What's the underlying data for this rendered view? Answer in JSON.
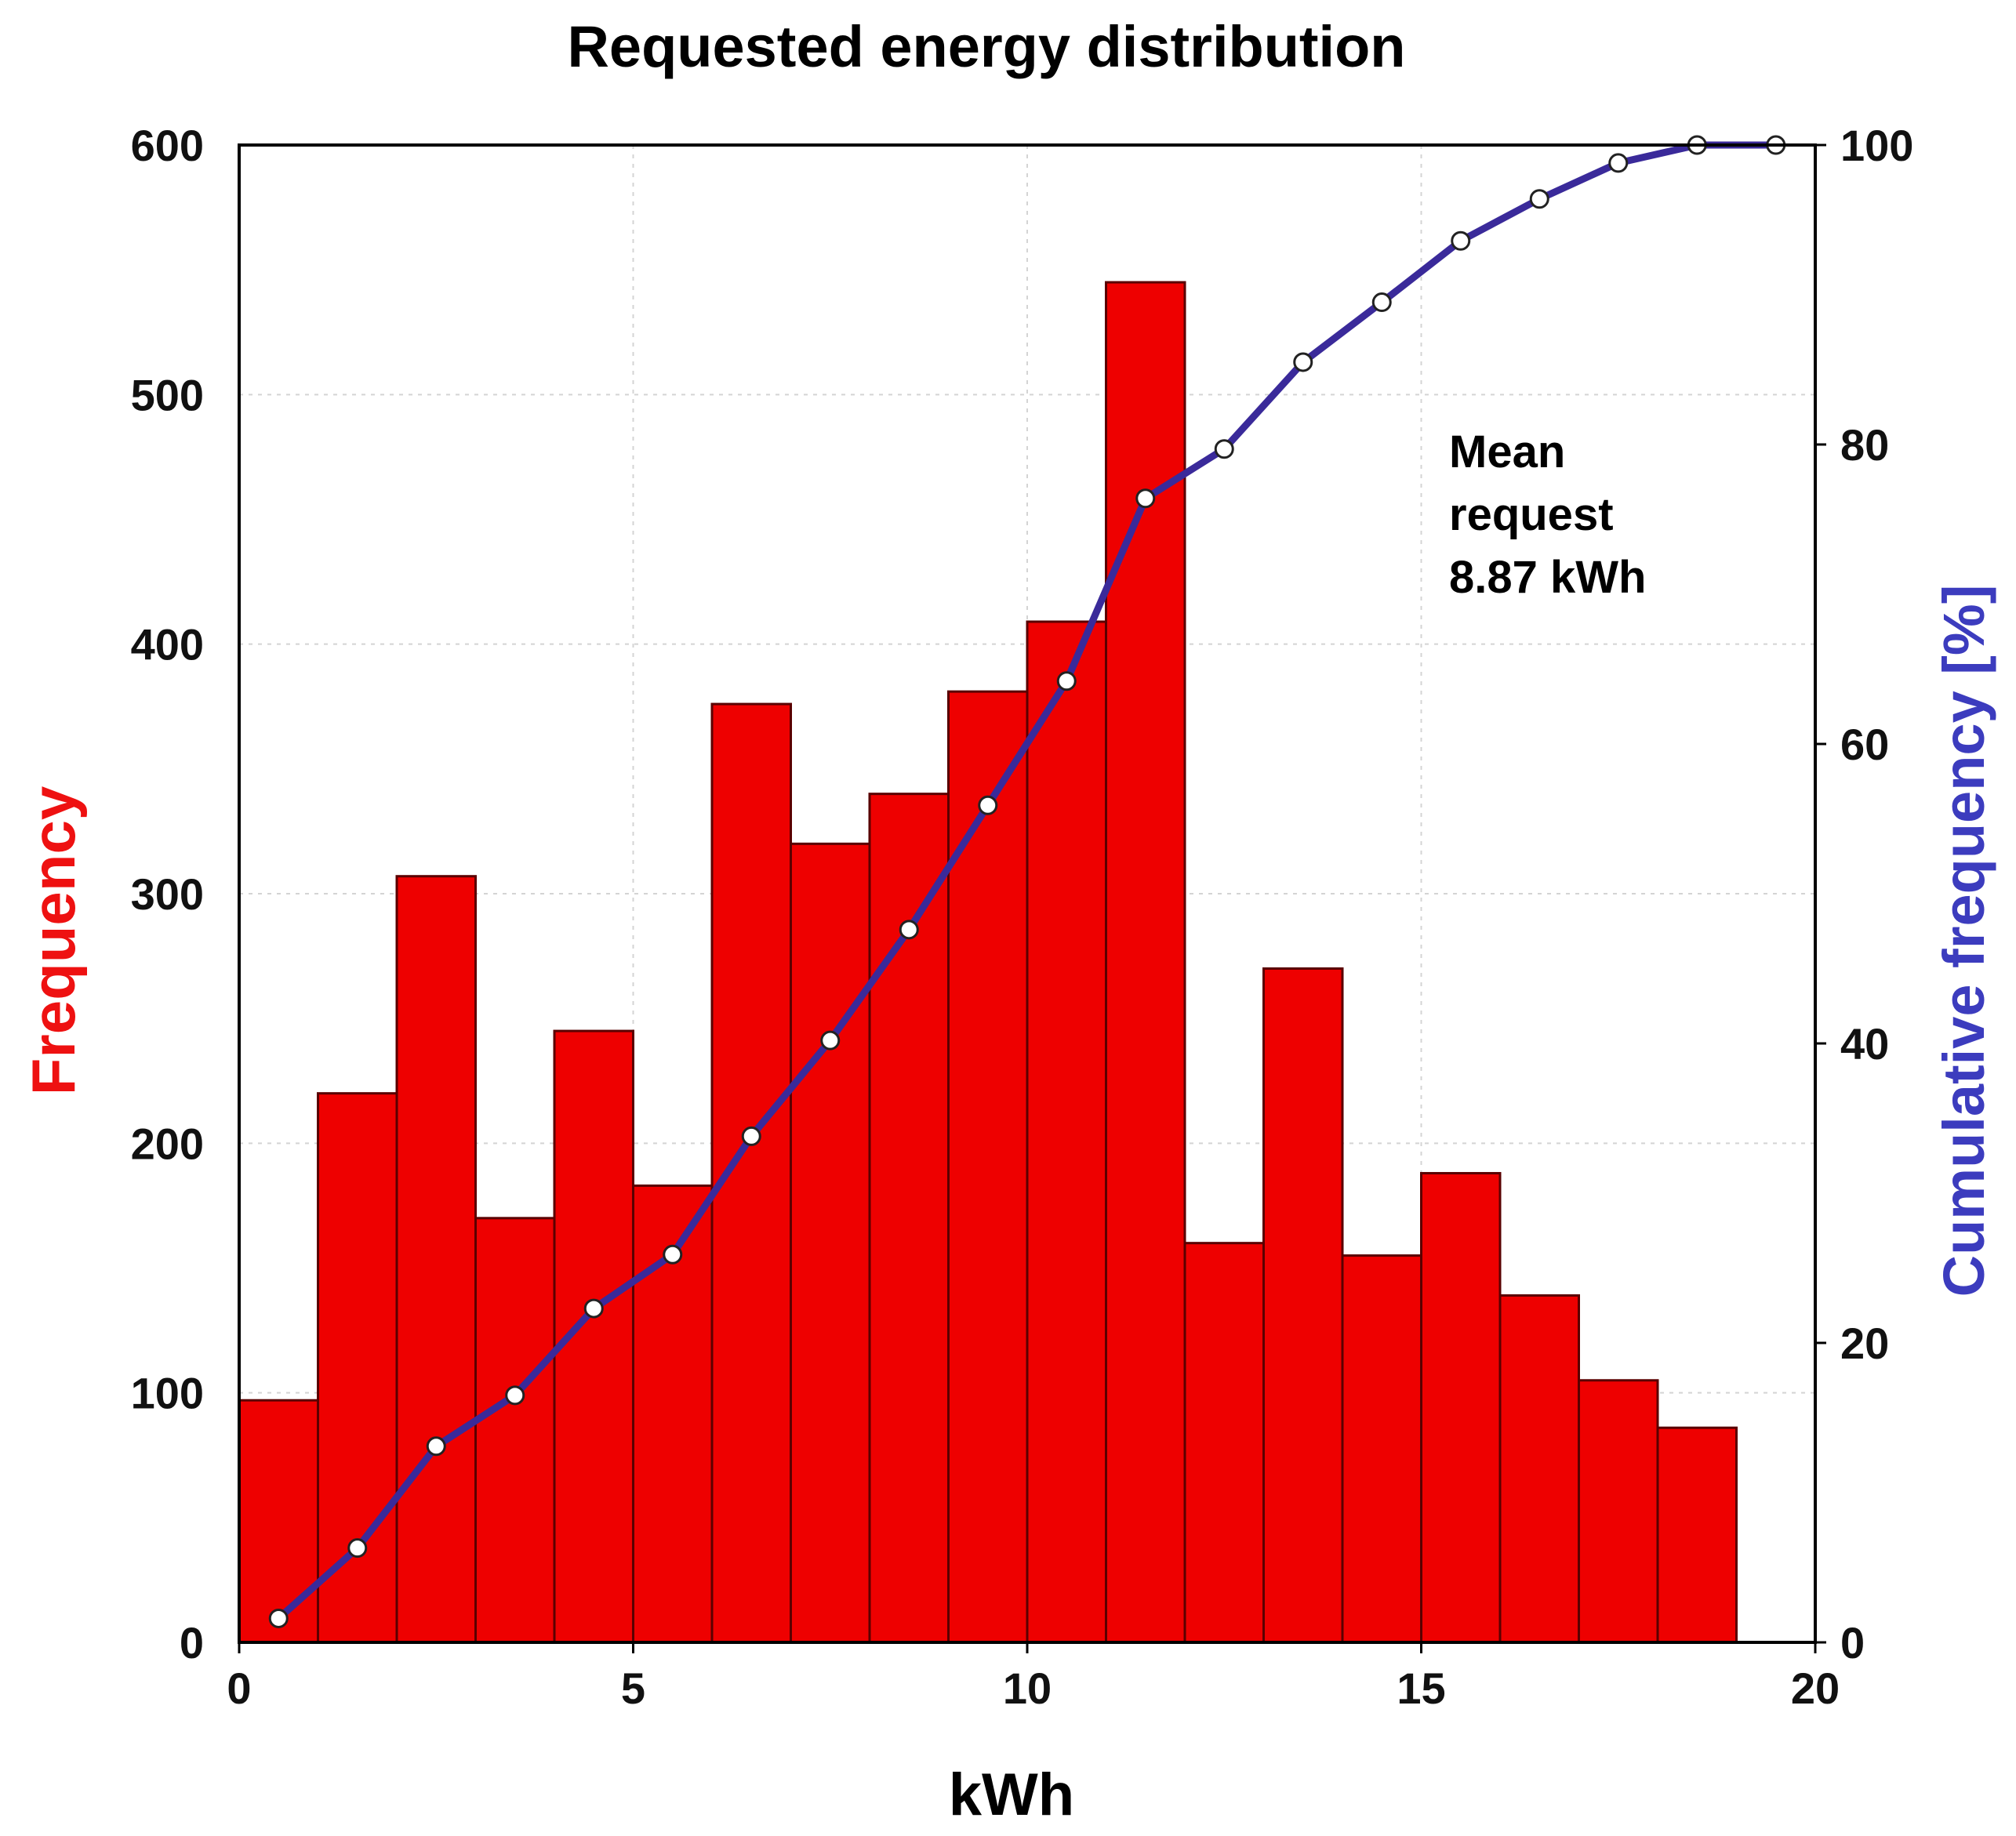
{
  "chart_data": {
    "type": "bar",
    "title": "Requested energy distribution",
    "xlabel": "kWh",
    "ylabel": "Frequency",
    "y2label": "Cumulative frequency [%]",
    "xlim": [
      0,
      20
    ],
    "ylim": [
      0,
      600
    ],
    "y2lim": [
      0,
      100
    ],
    "x_ticks": [
      "0",
      "5",
      "10",
      "15",
      "20"
    ],
    "y_ticks": [
      "0",
      "100",
      "200",
      "300",
      "400",
      "500",
      "600"
    ],
    "y2_ticks": [
      "0",
      "20",
      "40",
      "60",
      "80",
      "100"
    ],
    "grid": true,
    "bin_width": 1,
    "series": [
      {
        "name": "Frequency",
        "type": "bar",
        "color": "#ee0000",
        "bin_starts": [
          0,
          1,
          2,
          3,
          4,
          5,
          6,
          7,
          8,
          9,
          10,
          11,
          12,
          13,
          14,
          15,
          16,
          17,
          18
        ],
        "values": [
          97,
          220,
          307,
          170,
          245,
          183,
          376,
          320,
          340,
          381,
          409,
          545,
          160,
          270,
          155,
          188,
          139,
          105,
          86
        ]
      },
      {
        "name": "Cumulative frequency",
        "type": "line",
        "color": "#3a2a9a",
        "marker_color": "#ffffff",
        "x": [
          0.5,
          1.5,
          2.5,
          3.5,
          4.5,
          5.5,
          6.5,
          7.5,
          8.5,
          9.5,
          10.5,
          11.5,
          12.5,
          13.5,
          14.5,
          15.5,
          16.5,
          17.5,
          18.5,
          19.5
        ],
        "values": [
          1.6,
          6.3,
          13.1,
          16.5,
          22.3,
          25.9,
          33.8,
          40.2,
          47.6,
          55.9,
          64.2,
          76.4,
          79.7,
          85.5,
          89.5,
          93.6,
          96.4,
          98.8,
          100,
          100
        ]
      }
    ],
    "annotation": [
      "Mean",
      "request",
      "8.87 kWh"
    ],
    "colors": {
      "ylabel": "#ee1111",
      "y2label": "#3c3cbe",
      "bars": "#ee0000",
      "bar_edge": "#5a0000"
    }
  }
}
